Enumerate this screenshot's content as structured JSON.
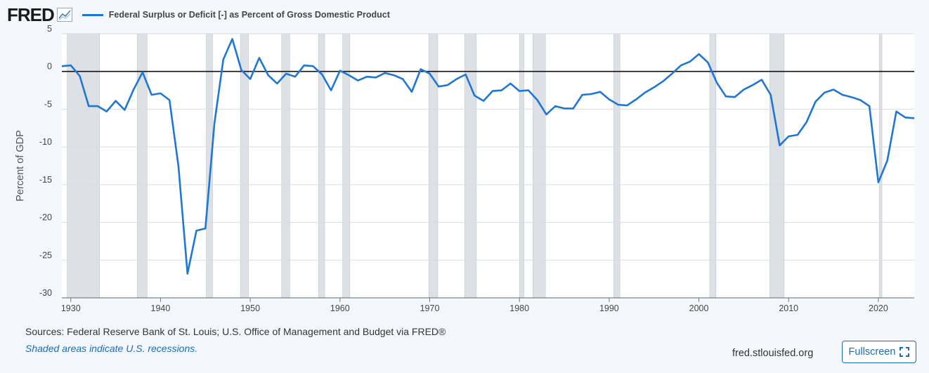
{
  "header": {
    "logo_text": "FRED",
    "logo_icon": "line-chart-icon",
    "legend_label": "Federal Surplus or Deficit [-] as Percent of Gross Domestic Product"
  },
  "chart_data": {
    "type": "line",
    "title": "Federal Surplus or Deficit [-] as Percent of Gross Domestic Product",
    "ylabel": "Percent of GDP",
    "xlabel": "",
    "xlim": [
      1929,
      2024
    ],
    "ylim": [
      -30,
      5
    ],
    "xticks": [
      1930,
      1940,
      1950,
      1960,
      1970,
      1980,
      1990,
      2000,
      2010,
      2020
    ],
    "yticks": [
      5,
      0,
      -5,
      -10,
      -15,
      -20,
      -25,
      -30
    ],
    "grid": true,
    "series_color": "#1f77d4",
    "recession_color": "#dde1e6",
    "zero_line": true,
    "recessions": [
      [
        1929.6,
        1933.2
      ],
      [
        1937.4,
        1938.5
      ],
      [
        1945.1,
        1945.8
      ],
      [
        1948.9,
        1949.8
      ],
      [
        1953.5,
        1954.4
      ],
      [
        1957.6,
        1958.3
      ],
      [
        1960.3,
        1961.1
      ],
      [
        1969.9,
        1970.9
      ],
      [
        1973.9,
        1975.2
      ],
      [
        1980.0,
        1980.5
      ],
      [
        1981.5,
        1982.9
      ],
      [
        1990.5,
        1991.2
      ],
      [
        2001.2,
        2001.9
      ],
      [
        2007.9,
        2009.5
      ],
      [
        2020.1,
        2020.4
      ]
    ],
    "series": [
      {
        "name": "Federal Surplus or Deficit [-] as Percent of Gross Domestic Product",
        "x": [
          1929,
          1930,
          1931,
          1932,
          1933,
          1934,
          1935,
          1936,
          1937,
          1938,
          1939,
          1940,
          1941,
          1942,
          1943,
          1944,
          1945,
          1946,
          1947,
          1948,
          1949,
          1950,
          1951,
          1952,
          1953,
          1954,
          1955,
          1956,
          1957,
          1958,
          1959,
          1960,
          1961,
          1962,
          1963,
          1964,
          1965,
          1966,
          1967,
          1968,
          1969,
          1970,
          1971,
          1972,
          1973,
          1974,
          1975,
          1976,
          1977,
          1978,
          1979,
          1980,
          1981,
          1982,
          1983,
          1984,
          1985,
          1986,
          1987,
          1988,
          1989,
          1990,
          1991,
          1992,
          1993,
          1994,
          1995,
          1996,
          1997,
          1998,
          1999,
          2000,
          2001,
          2002,
          2003,
          2004,
          2005,
          2006,
          2007,
          2008,
          2009,
          2010,
          2011,
          2012,
          2013,
          2014,
          2015,
          2016,
          2017,
          2018,
          2019,
          2020,
          2021,
          2022,
          2023,
          2024
        ],
        "values": [
          0.7,
          0.8,
          -0.6,
          -4.6,
          -4.6,
          -5.3,
          -3.9,
          -5.1,
          -2.4,
          -0.1,
          -3.1,
          -2.9,
          -3.8,
          -12.6,
          -26.8,
          -21.1,
          -20.8,
          -6.9,
          1.6,
          4.3,
          0.2,
          -1.0,
          1.8,
          -0.5,
          -1.6,
          -0.3,
          -0.7,
          0.8,
          0.7,
          -0.4,
          -2.5,
          0.1,
          -0.5,
          -1.2,
          -0.7,
          -0.8,
          -0.2,
          -0.5,
          -1.0,
          -2.7,
          0.3,
          -0.3,
          -2.0,
          -1.8,
          -1.0,
          -0.4,
          -3.2,
          -3.9,
          -2.6,
          -2.5,
          -1.6,
          -2.6,
          -2.5,
          -3.8,
          -5.7,
          -4.6,
          -4.9,
          -4.9,
          -3.1,
          -3.0,
          -2.7,
          -3.7,
          -4.4,
          -4.5,
          -3.7,
          -2.8,
          -2.1,
          -1.3,
          -0.3,
          0.8,
          1.3,
          2.3,
          1.2,
          -1.5,
          -3.3,
          -3.4,
          -2.4,
          -1.8,
          -1.1,
          -3.1,
          -9.8,
          -8.6,
          -8.4,
          -6.7,
          -4.0,
          -2.8,
          -2.4,
          -3.1,
          -3.4,
          -3.8,
          -4.6,
          -14.7,
          -11.8,
          -5.3,
          -6.1,
          -6.2
        ]
      }
    ]
  },
  "footer": {
    "sources": "Sources: Federal Reserve Bank of St. Louis; U.S. Office of Management and Budget via FRED®",
    "recession_note": "Shaded areas indicate U.S. recessions.",
    "site": "fred.stlouisfed.org",
    "fullscreen_label": "Fullscreen",
    "fullscreen_icon": "expand-icon"
  }
}
